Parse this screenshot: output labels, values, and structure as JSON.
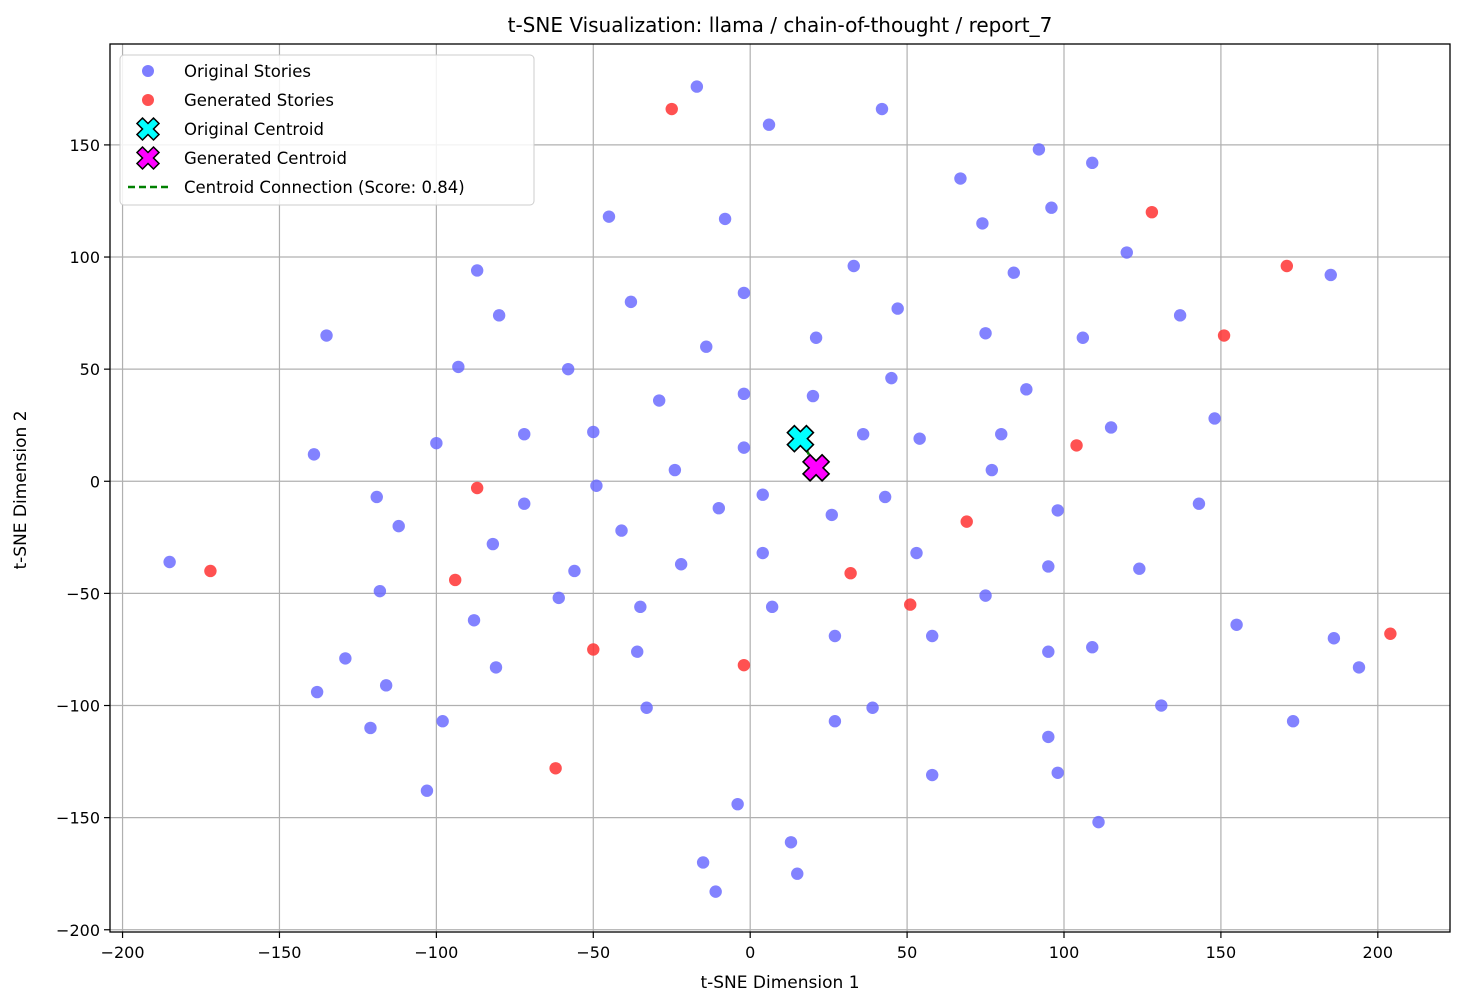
{
  "chart_data": {
    "type": "scatter",
    "title": "t-SNE Visualization: llama / chain-of-thought / report_7",
    "xlabel": "t-SNE Dimension 1",
    "ylabel": "t-SNE Dimension 2",
    "xlim": [
      -204,
      223
    ],
    "ylim": [
      -201,
      195
    ],
    "xticks": [
      -200,
      -150,
      -100,
      -50,
      0,
      50,
      100,
      150,
      200
    ],
    "yticks": [
      -200,
      -150,
      -100,
      -50,
      0,
      50,
      100,
      150
    ],
    "grid": true,
    "legend_position": "upper-left",
    "colors": {
      "original": "#6666ff",
      "generated": "#ff3333",
      "original_centroid": "#00ffff",
      "generated_centroid": "#ff00ff",
      "connection": "#008000"
    },
    "legend": [
      {
        "label": "Original Stories",
        "kind": "dot",
        "color": "#6666ff"
      },
      {
        "label": "Generated Stories",
        "kind": "dot",
        "color": "#ff3333"
      },
      {
        "label": "Original Centroid",
        "kind": "cross",
        "color": "#00ffff"
      },
      {
        "label": "Generated Centroid",
        "kind": "cross",
        "color": "#ff00ff"
      },
      {
        "label": "Centroid Connection (Score: 0.84)",
        "kind": "dashed-line",
        "color": "#008000"
      }
    ],
    "series": [
      {
        "name": "Original Stories",
        "points": [
          [
            -185,
            -36
          ],
          [
            -139,
            12
          ],
          [
            -135,
            65
          ],
          [
            -129,
            -79
          ],
          [
            -138,
            -94
          ],
          [
            -121,
            -110
          ],
          [
            -119,
            -7
          ],
          [
            -118,
            -49
          ],
          [
            -116,
            -91
          ],
          [
            -112,
            -20
          ],
          [
            -103,
            -138
          ],
          [
            -100,
            17
          ],
          [
            -98,
            -107
          ],
          [
            -93,
            51
          ],
          [
            -88,
            -62
          ],
          [
            -87,
            94
          ],
          [
            -82,
            -28
          ],
          [
            -81,
            -83
          ],
          [
            -80,
            74
          ],
          [
            -72,
            21
          ],
          [
            -72,
            -10
          ],
          [
            -61,
            -52
          ],
          [
            -58,
            50
          ],
          [
            -56,
            -40
          ],
          [
            -50,
            22
          ],
          [
            -49,
            -2
          ],
          [
            -45,
            118
          ],
          [
            -41,
            -22
          ],
          [
            -38,
            80
          ],
          [
            -36,
            -76
          ],
          [
            -35,
            -56
          ],
          [
            -33,
            -101
          ],
          [
            -29,
            36
          ],
          [
            -24,
            5
          ],
          [
            -22,
            -37
          ],
          [
            -17,
            176
          ],
          [
            -15,
            -170
          ],
          [
            -14,
            60
          ],
          [
            -11,
            -183
          ],
          [
            -10,
            -12
          ],
          [
            -8,
            117
          ],
          [
            -4,
            -144
          ],
          [
            -2,
            84
          ],
          [
            -2,
            39
          ],
          [
            -2,
            15
          ],
          [
            4,
            -6
          ],
          [
            4,
            -32
          ],
          [
            6,
            159
          ],
          [
            7,
            -56
          ],
          [
            13,
            -161
          ],
          [
            15,
            -175
          ],
          [
            20,
            38
          ],
          [
            21,
            64
          ],
          [
            26,
            -15
          ],
          [
            27,
            -69
          ],
          [
            27,
            -107
          ],
          [
            33,
            96
          ],
          [
            36,
            21
          ],
          [
            39,
            -101
          ],
          [
            42,
            166
          ],
          [
            43,
            -7
          ],
          [
            45,
            46
          ],
          [
            47,
            77
          ],
          [
            53,
            -32
          ],
          [
            54,
            19
          ],
          [
            58,
            -69
          ],
          [
            58,
            -131
          ],
          [
            67,
            135
          ],
          [
            74,
            115
          ],
          [
            75,
            66
          ],
          [
            75,
            -51
          ],
          [
            77,
            5
          ],
          [
            80,
            21
          ],
          [
            84,
            93
          ],
          [
            88,
            41
          ],
          [
            92,
            148
          ],
          [
            95,
            -38
          ],
          [
            95,
            -76
          ],
          [
            95,
            -114
          ],
          [
            96,
            122
          ],
          [
            98,
            -13
          ],
          [
            98,
            -130
          ],
          [
            106,
            64
          ],
          [
            109,
            142
          ],
          [
            109,
            -74
          ],
          [
            111,
            -152
          ],
          [
            115,
            24
          ],
          [
            120,
            102
          ],
          [
            124,
            -39
          ],
          [
            131,
            -100
          ],
          [
            137,
            74
          ],
          [
            143,
            -10
          ],
          [
            148,
            28
          ],
          [
            155,
            -64
          ],
          [
            173,
            -107
          ],
          [
            185,
            92
          ],
          [
            186,
            -70
          ],
          [
            194,
            -83
          ]
        ]
      },
      {
        "name": "Generated Stories",
        "points": [
          [
            -172,
            -40
          ],
          [
            -94,
            -44
          ],
          [
            -87,
            -3
          ],
          [
            -62,
            -128
          ],
          [
            -50,
            -75
          ],
          [
            -25,
            166
          ],
          [
            -2,
            -82
          ],
          [
            32,
            -41
          ],
          [
            51,
            -55
          ],
          [
            69,
            -18
          ],
          [
            104,
            16
          ],
          [
            128,
            120
          ],
          [
            151,
            65
          ],
          [
            171,
            96
          ],
          [
            204,
            -68
          ]
        ]
      },
      {
        "name": "Original Centroid",
        "points": [
          [
            16,
            19
          ]
        ]
      },
      {
        "name": "Generated Centroid",
        "points": [
          [
            21,
            6
          ]
        ]
      }
    ]
  }
}
